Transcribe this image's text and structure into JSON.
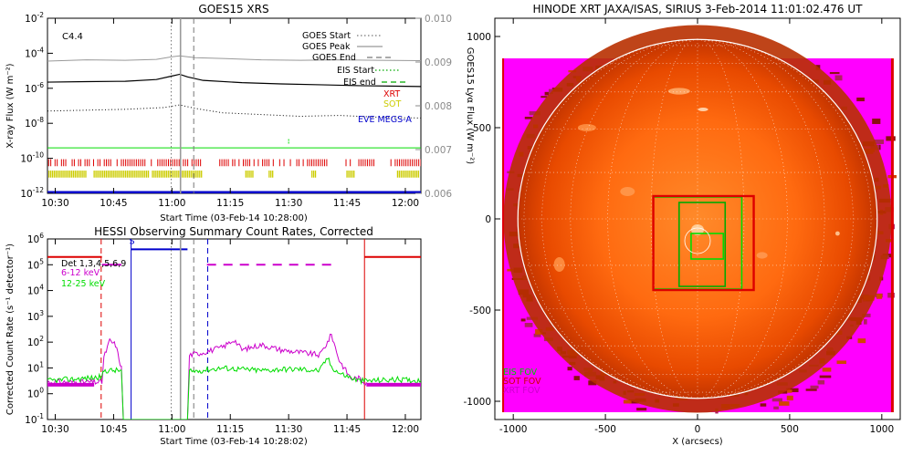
{
  "colors": {
    "green": "#00dd00",
    "red": "#dd0000",
    "yellow": "#cccc00",
    "blue": "#0000cc",
    "magenta": "#cc00cc",
    "gray": "#999999",
    "darkgray": "#777777",
    "solar_bg": "#ff00ff",
    "solar_disk": "#ff6600"
  },
  "chart_data": [
    {
      "type": "line",
      "title": "GOES15 XRS",
      "annotation": "C4.4",
      "xlabel": "Start Time (03-Feb-14 10:28:00)",
      "ylabel": "X-ray Flux (W m⁻²)",
      "ylabel_right": "GOES15 Lyα Flux (W m⁻²)",
      "xlim_minutes": [
        0,
        96
      ],
      "ylim_log": [
        -12,
        -2
      ],
      "y2lim": [
        0.006,
        0.01
      ],
      "x_tick_minutes": [
        2,
        17,
        32,
        47,
        62,
        77,
        92
      ],
      "x_tick_labels": [
        "10:30",
        "10:45",
        "11:00",
        "11:15",
        "11:30",
        "11:45",
        "12:00"
      ],
      "y_tick_exps": [
        -2,
        -4,
        -6,
        -8,
        -10,
        -12
      ],
      "y_tick_labels": [
        "10",
        "10",
        "10",
        "10",
        "10",
        "10"
      ],
      "y_tick_sups": [
        "-2",
        "-4",
        "-6",
        "-8",
        "-10",
        "-12"
      ],
      "y2_ticks": [
        0.01,
        0.009,
        0.008,
        0.007,
        0.006
      ],
      "y2_tick_labels": [
        "0.010",
        "0.009",
        "0.008",
        "0.007",
        "0.006"
      ],
      "markers_minutes": {
        "goes_start": 31.8,
        "goes_peak": 34.2,
        "goes_end": 37.6
      },
      "legend": [
        {
          "label": "GOES Start",
          "style": "dotted",
          "color": "#777777"
        },
        {
          "label": "GOES Peak",
          "style": "solid",
          "color": "#999999"
        },
        {
          "label": "GOES End",
          "style": "dashed",
          "color": "#777777"
        },
        {
          "label": "EIS Start",
          "style": "dotted",
          "color": "#00aa00"
        },
        {
          "label": "EIS end",
          "style": "dashed",
          "color": "#00aa00"
        }
      ],
      "instruments": [
        {
          "label": "XRT",
          "color": "#dd0000"
        },
        {
          "label": "SOT",
          "color": "#cccc00"
        },
        {
          "label": "EVE MEGS-A",
          "color": "#0000cc"
        }
      ],
      "series": [
        {
          "name": "Lyman-alpha (right axis)",
          "color": "#999999",
          "x": [
            0,
            10,
            20,
            28,
            32,
            34,
            38,
            45,
            55,
            65,
            75,
            85,
            96
          ],
          "y2": [
            0.00902,
            0.00905,
            0.00904,
            0.00906,
            0.00912,
            0.00914,
            0.0091,
            0.00908,
            0.00905,
            0.00904,
            0.00905,
            0.00904,
            0.00903
          ]
        },
        {
          "name": "GOES long (1-8 A)",
          "color": "#000000",
          "x": [
            0,
            10,
            20,
            28,
            32,
            34,
            36,
            40,
            50,
            60,
            70,
            80,
            90,
            96
          ],
          "y_exp": [
            -5.65,
            -5.62,
            -5.6,
            -5.5,
            -5.3,
            -5.2,
            -5.35,
            -5.55,
            -5.68,
            -5.75,
            -5.8,
            -5.85,
            -5.88,
            -5.9
          ]
        },
        {
          "name": "GOES short (0.5-4 A)",
          "color": "#000000",
          "style": "dotted",
          "x": [
            0,
            10,
            20,
            30,
            34,
            38,
            45,
            55,
            65,
            75,
            85,
            96
          ],
          "y_exp": [
            -7.3,
            -7.25,
            -7.2,
            -7.1,
            -6.95,
            -7.15,
            -7.4,
            -7.5,
            -7.6,
            -7.55,
            -7.65,
            -7.7
          ]
        },
        {
          "name": "EIS level",
          "color": "#00dd00",
          "y_exp": -9.4
        }
      ]
    },
    {
      "type": "line",
      "title": "HESSI Observing Summary Count Rates, Corrected",
      "xlabel": "Start Time (03-Feb-14 10:28:02)",
      "ylabel": "Corrected Count Rate (s⁻¹ detector⁻¹)",
      "xlim_minutes": [
        0,
        96
      ],
      "ylim_log": [
        -1,
        6
      ],
      "x_tick_minutes": [
        2,
        17,
        32,
        47,
        62,
        77,
        92
      ],
      "x_tick_labels": [
        "10:30",
        "10:45",
        "11:00",
        "11:15",
        "11:30",
        "11:45",
        "12:00"
      ],
      "y_tick_exps": [
        6,
        5,
        4,
        3,
        2,
        1,
        0,
        -1
      ],
      "y_tick_labels": [
        "10",
        "10",
        "10",
        "10",
        "10",
        "10",
        "10",
        "10"
      ],
      "y_tick_sups": [
        "6",
        "5",
        "4",
        "3",
        "2",
        "1",
        "0",
        "-1"
      ],
      "legend": [
        {
          "label": "Det 1,3,4,5,6,9",
          "color": "#000000"
        },
        {
          "label": "6-12 keV",
          "color": "#cc00cc"
        },
        {
          "label": "12-25 keV",
          "color": "#00dd00"
        }
      ],
      "flag_label": "S",
      "series": [
        {
          "name": "6-12 keV",
          "color": "#cc00cc",
          "x": [
            0,
            14,
            14.5,
            16,
            17.5,
            19,
            19.5,
            36,
            36.5,
            40,
            45,
            48,
            50,
            55,
            60,
            65,
            70,
            72,
            73,
            75,
            78,
            80,
            81.5,
            82
          ],
          "y_exp": [
            0.45,
            0.45,
            1.4,
            2.05,
            1.9,
            1.0,
            -1.0,
            -1.0,
            1.5,
            1.6,
            1.8,
            2.1,
            1.7,
            1.9,
            1.7,
            1.6,
            1.5,
            2.0,
            2.3,
            1.3,
            0.6,
            0.6,
            0.45,
            0.45
          ]
        },
        {
          "name": "12-25 keV",
          "color": "#00dd00",
          "x": [
            0,
            10,
            14,
            14.5,
            19,
            19.5,
            36,
            36.5,
            45,
            50,
            55,
            60,
            65,
            70,
            72,
            73,
            75,
            80,
            82,
            90,
            96
          ],
          "y_exp": [
            0.5,
            0.6,
            0.65,
            0.9,
            0.9,
            -1.0,
            -1.0,
            0.85,
            1.0,
            0.95,
            0.9,
            0.95,
            0.95,
            0.9,
            1.4,
            1.05,
            0.8,
            0.5,
            0.5,
            0.55,
            0.5
          ]
        }
      ],
      "attenuator_segments": [
        {
          "x": [
            0,
            14
          ],
          "y_exp": 5.3,
          "color": "#dd0000"
        },
        {
          "x": [
            14,
            19
          ],
          "y_exp": 5.0,
          "color": "#cc00cc"
        },
        {
          "x": [
            21.5,
            36
          ],
          "y_exp": 5.6,
          "color": "#0000cc"
        },
        {
          "x": [
            41,
            74
          ],
          "y_exp": 5.0,
          "color": "#cc00cc",
          "style": "dashed"
        },
        {
          "x": [
            81.5,
            96
          ],
          "y_exp": 5.3,
          "color": "#dd0000"
        }
      ],
      "vlines": [
        {
          "x": 13.8,
          "color": "#dd0000",
          "style": "dashed"
        },
        {
          "x": 21.5,
          "color": "#0000cc",
          "style": "solid"
        },
        {
          "x": 31.8,
          "color": "#777777",
          "style": "dotted"
        },
        {
          "x": 34.2,
          "color": "#999999",
          "style": "solid"
        },
        {
          "x": 37.6,
          "color": "#777777",
          "style": "dashed"
        },
        {
          "x": 41.2,
          "color": "#0000cc",
          "style": "dashed"
        },
        {
          "x": 81.5,
          "color": "#dd0000",
          "style": "solid"
        }
      ]
    },
    {
      "type": "heatmap",
      "title": "HINODE XRT JAXA/ISAS, SIRIUS   3-Feb-2014 11:01:02.476 UT",
      "xlabel": "X (arcsecs)",
      "ylabel": "",
      "xlim": [
        -1100,
        1100
      ],
      "ylim": [
        -1100,
        1100
      ],
      "x_ticks": [
        -1000,
        -500,
        0,
        500,
        1000
      ],
      "x_tick_labels": [
        "-1000",
        "-500",
        "0",
        "500",
        "1000"
      ],
      "y_ticks": [
        1000,
        500,
        0,
        -500,
        -1000
      ],
      "y_tick_labels": [
        "1000",
        "500",
        "0",
        "-500",
        "-1000"
      ],
      "solar_radius_arcsec": 975,
      "grid": "heliographic",
      "fovs": [
        {
          "name": "EIS FOV",
          "color": "#00dd00",
          "x": [
            -240,
            240
          ],
          "y": [
            -385,
            120
          ]
        },
        {
          "name": "XRT FOV",
          "color": "#dd0000",
          "x": [
            -240,
            305
          ],
          "y": [
            -390,
            125
          ]
        },
        {
          "name": "SOT FOV",
          "color": "#00aa00",
          "x": [
            -100,
            150
          ],
          "y": [
            -370,
            90
          ]
        },
        {
          "name": "AR box",
          "color": "#00dd00",
          "x": [
            -35,
            140
          ],
          "y": [
            -220,
            -80
          ]
        }
      ],
      "legend": [
        {
          "label": "EIS FOV",
          "color": "#00cc00"
        },
        {
          "label": "SOT FOV",
          "color": "#cc0000"
        },
        {
          "label": "XRT FOV",
          "color": "#cc00cc"
        }
      ]
    }
  ]
}
